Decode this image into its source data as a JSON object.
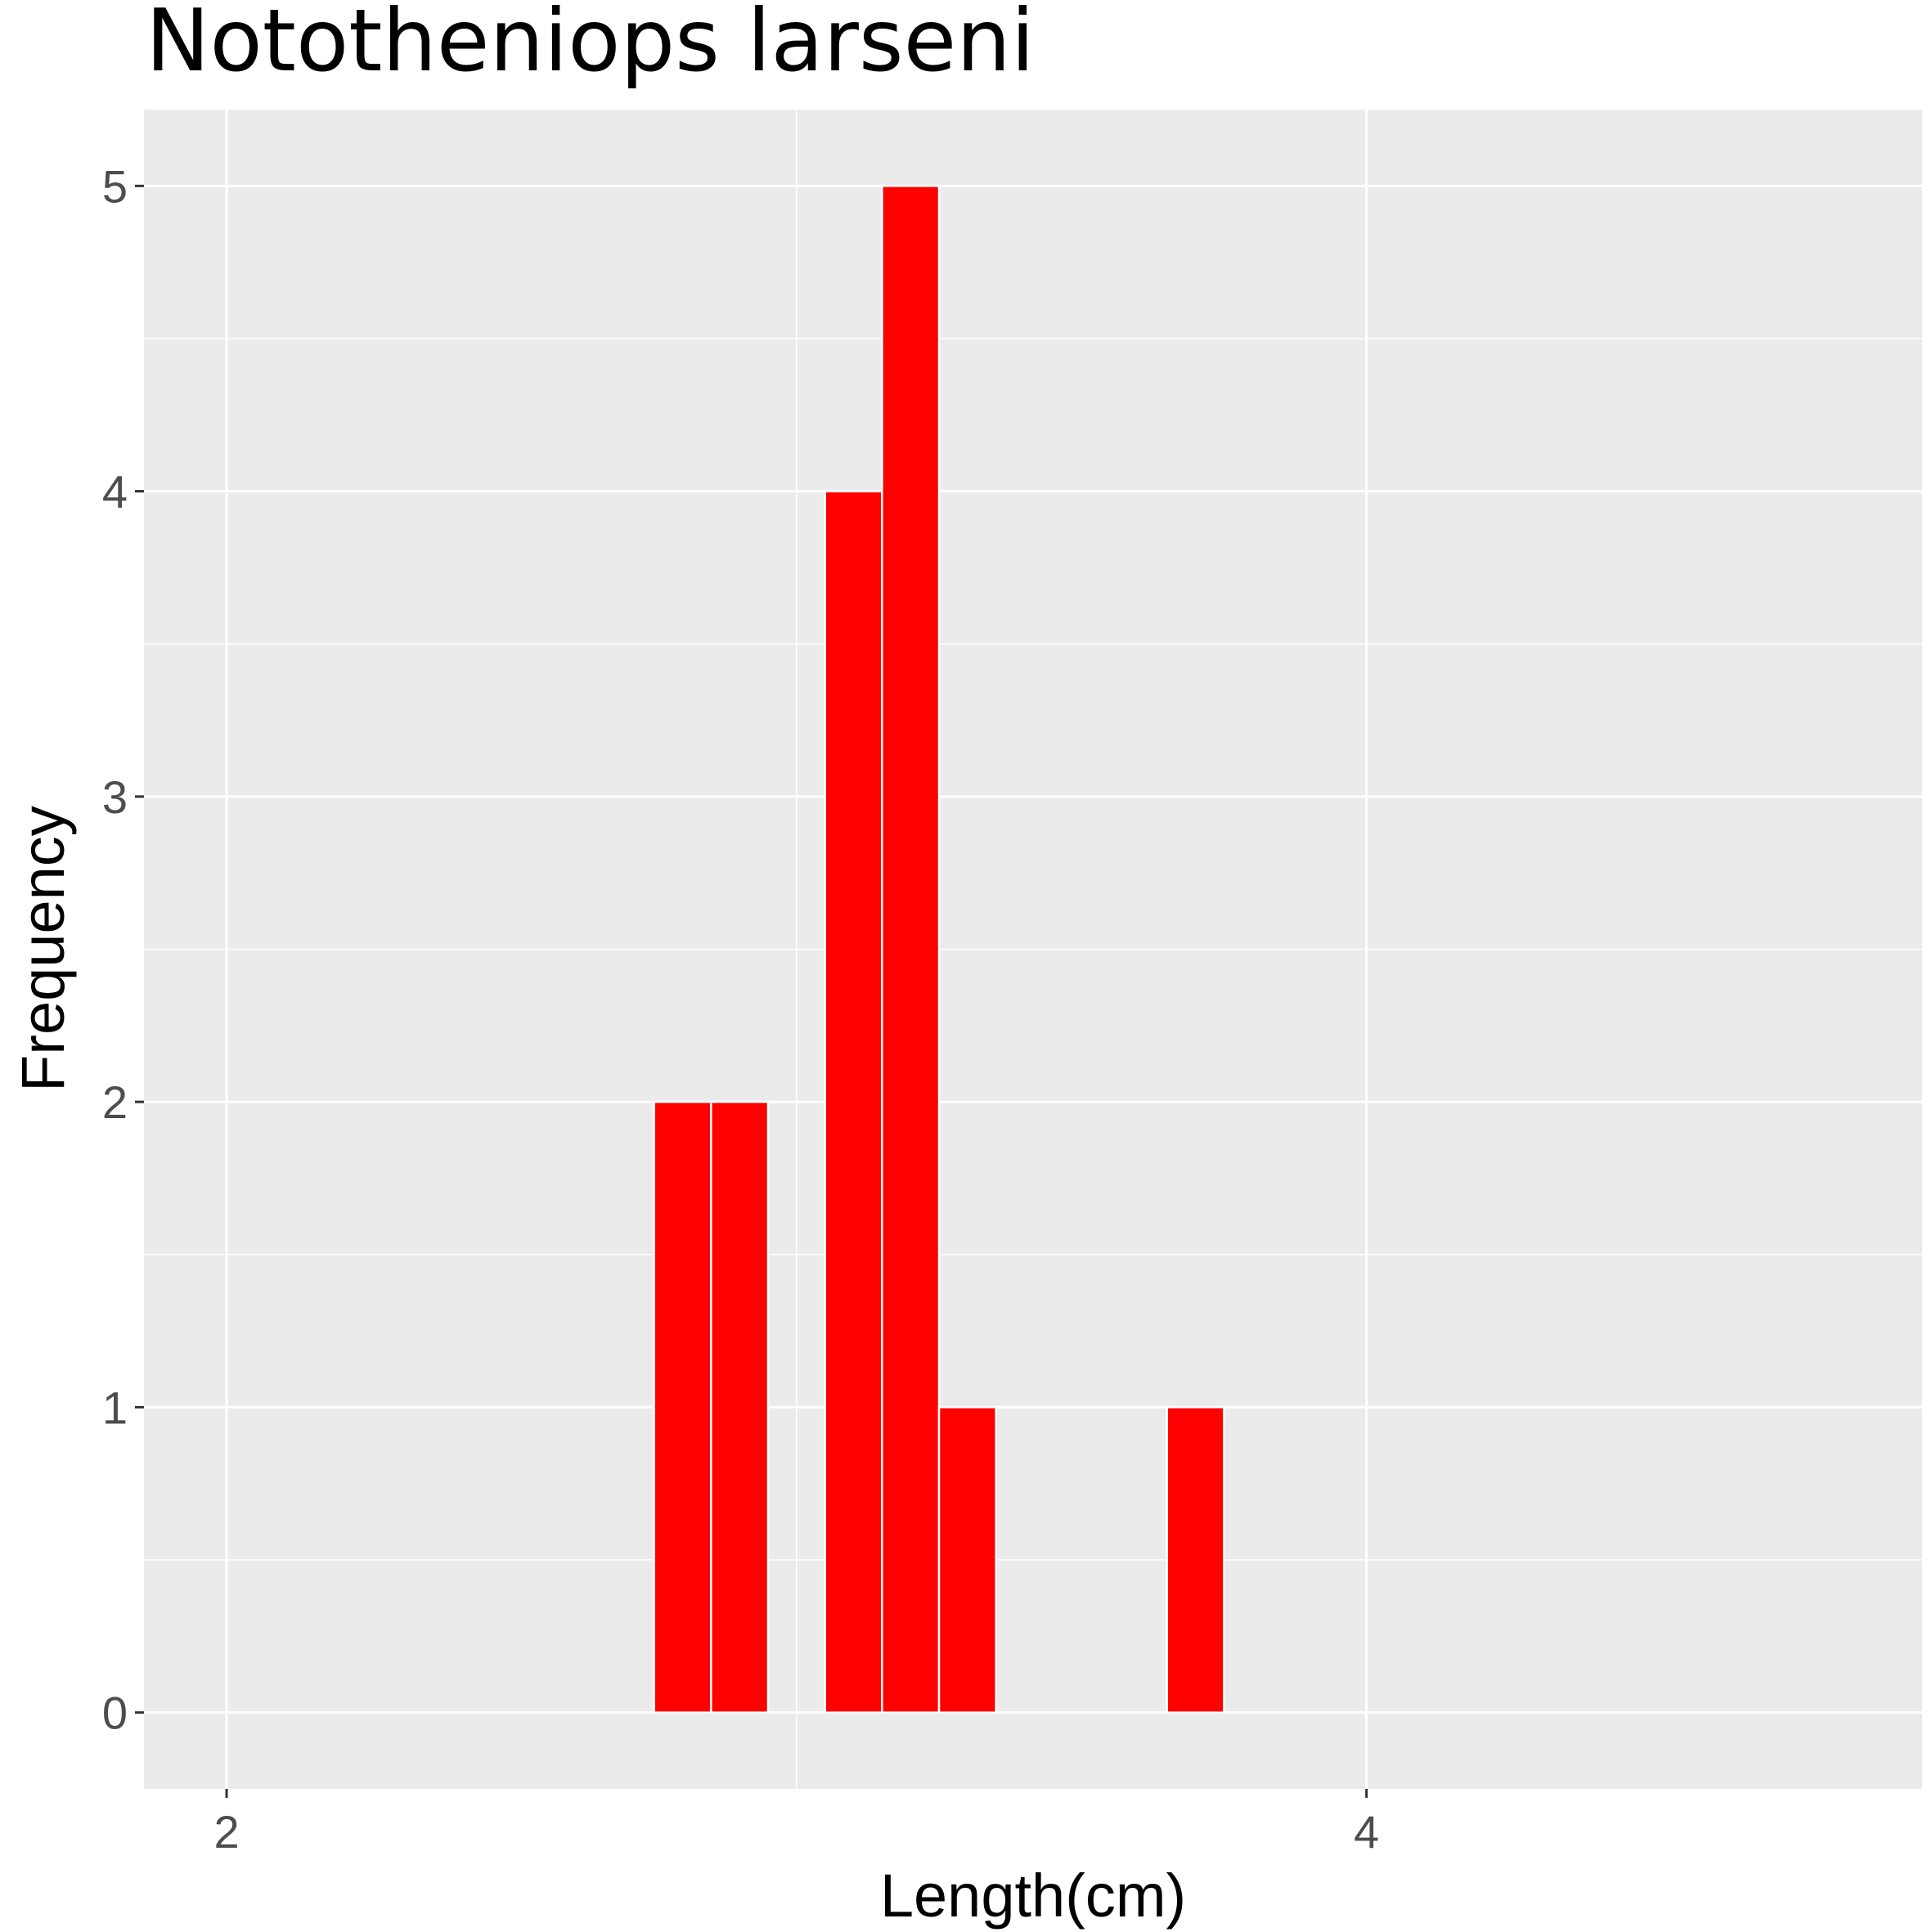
{
  "chart_data": {
    "type": "bar",
    "title": "Nototheniops larseni",
    "xlabel": "Length(cm)",
    "ylabel": "Frequency",
    "bin_width": 0.1,
    "bins": [
      {
        "start": 2.75,
        "end": 2.85,
        "count": 2
      },
      {
        "start": 2.85,
        "end": 2.95,
        "count": 2
      },
      {
        "start": 3.05,
        "end": 3.15,
        "count": 4
      },
      {
        "start": 3.15,
        "end": 3.25,
        "count": 5
      },
      {
        "start": 3.25,
        "end": 3.35,
        "count": 1
      },
      {
        "start": 3.65,
        "end": 3.75,
        "count": 1
      }
    ],
    "xlim": [
      1.855,
      4.975
    ],
    "ylim": [
      -0.25,
      5.25
    ],
    "x_ticks": [
      "2",
      "4"
    ],
    "x_tick_values": [
      2,
      4
    ],
    "y_ticks": [
      "0",
      "1",
      "2",
      "3",
      "4",
      "5"
    ],
    "y_tick_values": [
      0,
      1,
      2,
      3,
      4,
      5
    ],
    "grid": true,
    "colors": {
      "bar_fill": "#ff0000",
      "bar_outline": "#ffffff",
      "panel_background": "#ebebeb",
      "grid": "#ffffff"
    }
  }
}
